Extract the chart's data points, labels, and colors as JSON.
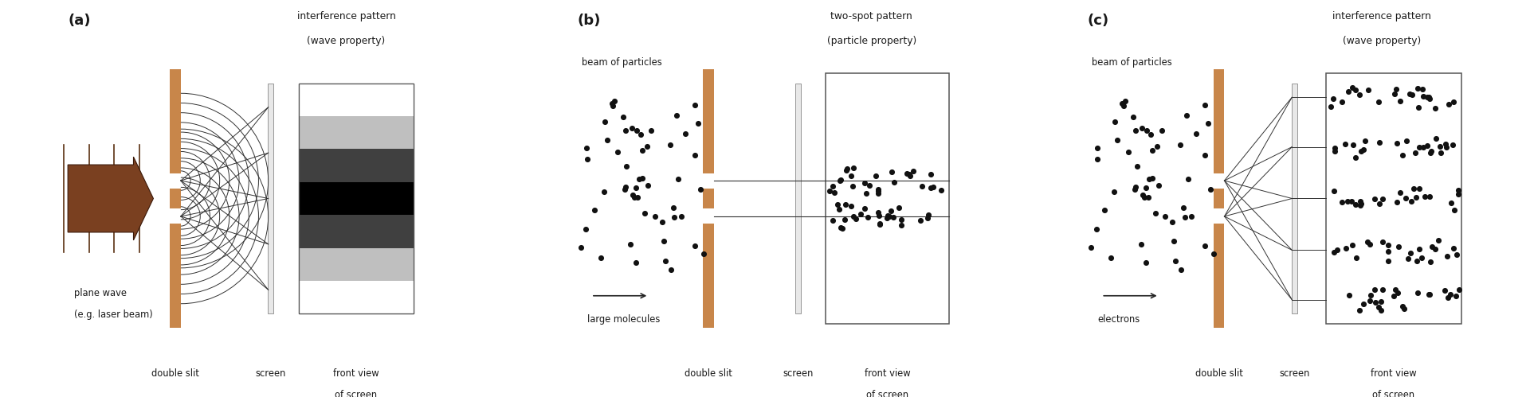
{
  "bg_color": "#ffffff",
  "slit_color": "#c8864a",
  "text_color": "#1a1a1a",
  "dot_color": "#111111",
  "panel_a": {
    "label": "(a)",
    "title1": "interference pattern",
    "title2": "(wave property)",
    "sub1": "plane wave",
    "sub2": "(e.g. laser beam)",
    "label_ds": "double slit",
    "label_sc": "screen",
    "label_fv1": "front view",
    "label_fv2": "of screen"
  },
  "panel_b": {
    "label": "(b)",
    "title1": "two-spot pattern",
    "title2": "(particle property)",
    "sub1": "beam of particles",
    "sub2": "large molecules",
    "label_ds": "double slit",
    "label_sc": "screen",
    "label_fv1": "front view",
    "label_fv2": "of screen"
  },
  "panel_c": {
    "label": "(c)",
    "title1": "interference pattern",
    "title2": "(wave property)",
    "sub1": "beam of particles",
    "sub2": "electrons",
    "label_ds": "double slit",
    "label_sc": "screen",
    "label_fv1": "front view",
    "label_fv2": "of screen"
  }
}
